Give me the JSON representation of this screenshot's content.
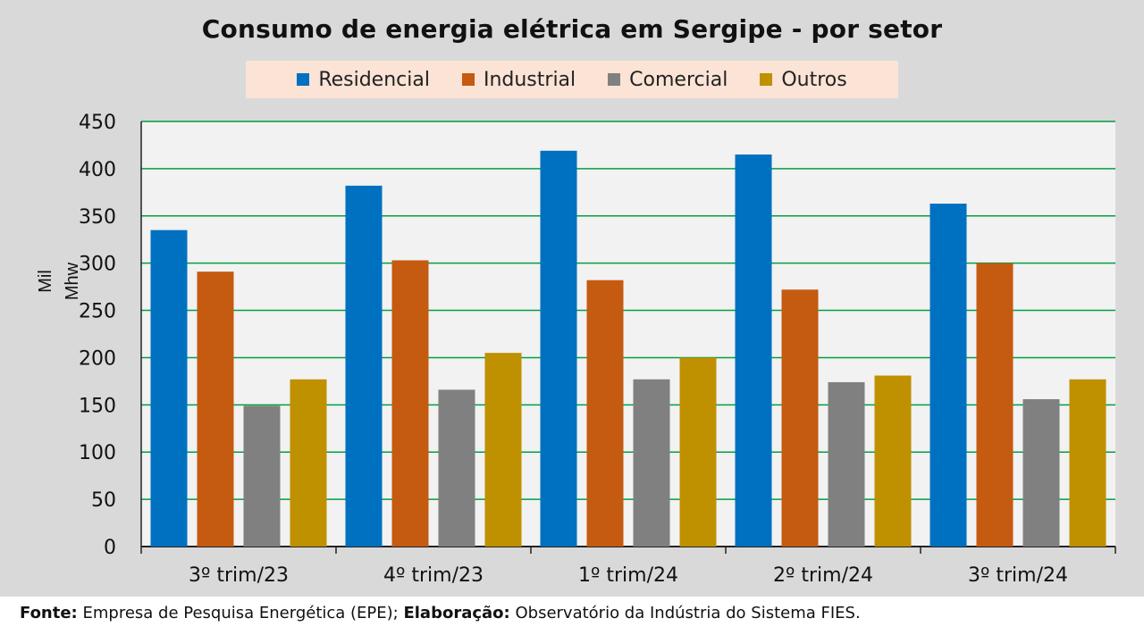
{
  "chart_data": {
    "type": "bar",
    "title": "Consumo de energia elétrica em Sergipe - por setor",
    "ylabel": "Mil Mhw",
    "xlabel": "",
    "ylim": [
      0,
      450
    ],
    "yticks": [
      0,
      50,
      100,
      150,
      200,
      250,
      300,
      350,
      400,
      450
    ],
    "grid": true,
    "legend_position": "top-center",
    "categories": [
      "3º trim/23",
      "4º trim/23",
      "1º trim/24",
      "2º trim/24",
      "3º trim/24"
    ],
    "series": [
      {
        "name": "Residencial",
        "color": "#0070c0",
        "values": [
          335,
          382,
          419,
          415,
          363
        ]
      },
      {
        "name": "Industrial",
        "color": "#c55a11",
        "values": [
          291,
          303,
          282,
          272,
          300
        ]
      },
      {
        "name": "Comercial",
        "color": "#808080",
        "values": [
          149,
          166,
          177,
          174,
          156
        ]
      },
      {
        "name": "Outros",
        "color": "#bf9000",
        "values": [
          177,
          205,
          200,
          181,
          177
        ]
      }
    ]
  },
  "footer": {
    "fonte_label": "Fonte:",
    "fonte_text": " Empresa de Pesquisa Energética (EPE); ",
    "elaboracao_label": "Elaboração:",
    "elaboracao_text": "  Observatório da Indústria do Sistema FIES."
  }
}
